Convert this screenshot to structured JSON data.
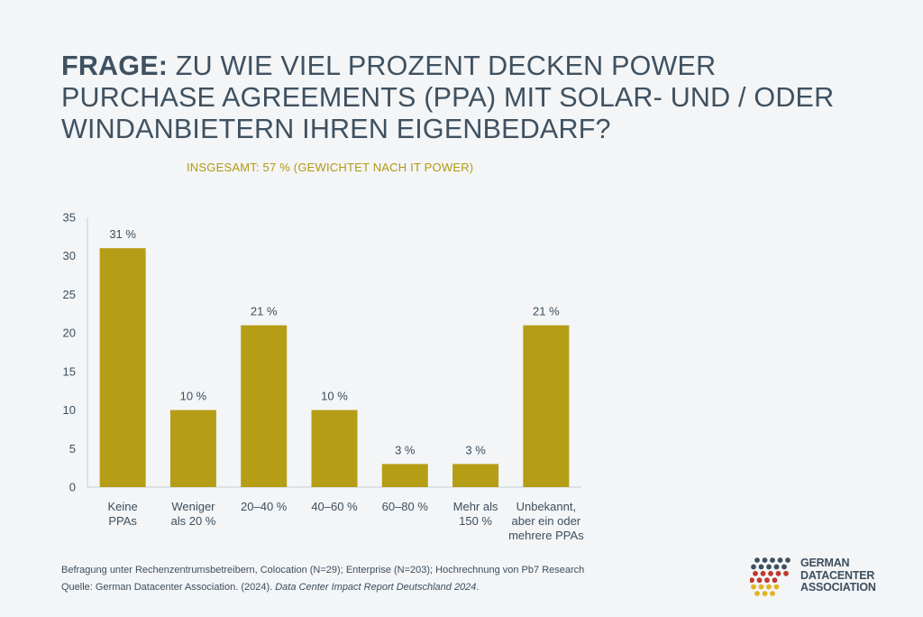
{
  "title_bold": "FRAGE:",
  "title_rest": " ZU WIE VIEL PROZENT DECKEN POWER PURCHASE AGREEMENTS (PPA) MIT SOLAR- UND / ODER WINDANBIETERN IHREN EIGENBEDARF?",
  "subtitle": "INSGESAMT: 57 % (GEWICHTET NACH IT POWER)",
  "chart_data": {
    "type": "bar",
    "categories": [
      [
        "Keine",
        "PPAs"
      ],
      [
        "Weniger",
        "als 20 %"
      ],
      [
        "20–40 %"
      ],
      [
        "40–60 %"
      ],
      [
        "60–80 %"
      ],
      [
        "Mehr als",
        "150 %"
      ],
      [
        "Unbekannt,",
        "aber ein oder",
        "mehrere PPAs"
      ]
    ],
    "values": [
      31,
      10,
      21,
      10,
      3,
      3,
      21
    ],
    "data_labels": [
      "31 %",
      "10 %",
      "21 %",
      "10 %",
      "3 %",
      "3 %",
      "21 %"
    ],
    "yticks": [
      0,
      5,
      10,
      15,
      20,
      25,
      30,
      35
    ],
    "ylim": [
      0,
      35
    ],
    "bar_color": "#b59d16",
    "grid": false
  },
  "footer": {
    "line1": "Befragung unter Rechenzentrumsbetreibern, Colocation (N=29); Enterprise (N=203); Hochrechnung von Pb7 Research",
    "line2_prefix": "Quelle: German Datacenter Association. (2024). ",
    "line2_italic": "Data Center Impact Report Deutschland 2024",
    "line2_suffix": "."
  },
  "logo": {
    "line1": "GERMAN",
    "line2": "DATACENTER",
    "line3": "ASSOCIATION",
    "dot_colors": [
      "#3d4f5e",
      "#c0392b",
      "#e0b520"
    ]
  }
}
